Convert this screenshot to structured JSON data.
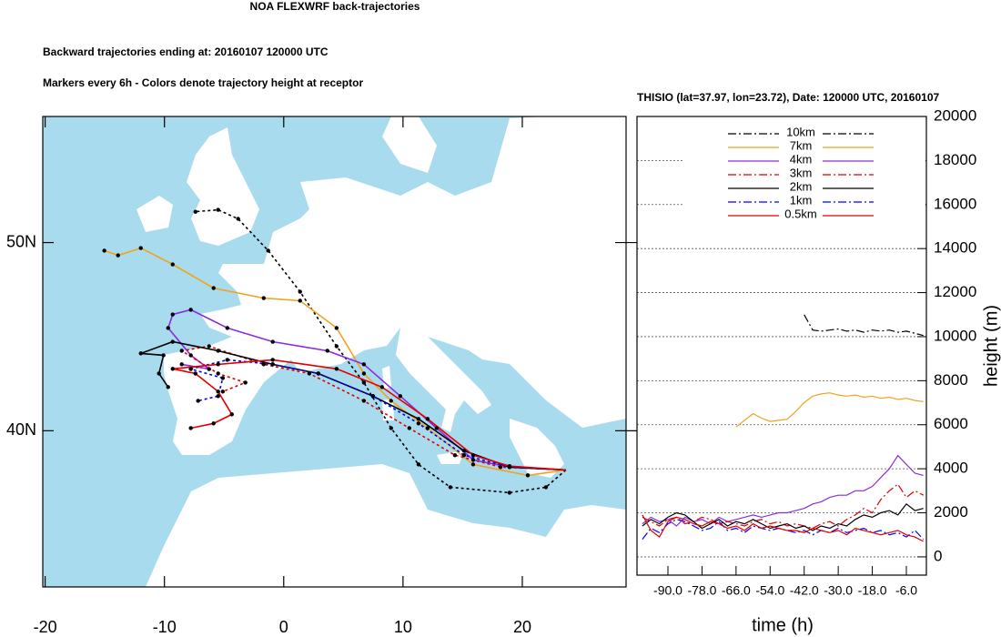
{
  "title": "NOA FLEXWRF back-trajectories",
  "subtitles": [
    "Backward trajectories ending at: 20160107  120000 UTC",
    "Markers every 6h - Colors denote trajectory height at receptor"
  ],
  "chart_data": [
    {
      "type": "trajectory",
      "xlim": [
        -20.2,
        28.7
      ],
      "ylim": [
        31.7,
        56.7
      ],
      "xticks": [
        -20,
        -10,
        0,
        10,
        20
      ],
      "yticks": [
        {
          "value": 40,
          "label": "40N"
        },
        {
          "value": 50,
          "label": "50N"
        }
      ],
      "grid": false,
      "series": [
        {
          "color": "#000000",
          "dash": "dot",
          "x": [
            23.66,
            21.98,
            18.93,
            13.97,
            11.3,
            9.0,
            6.72,
            4.43,
            1.37,
            -1.3,
            -3.82,
            -5.5,
            -7.4
          ],
          "values": [
            37.92,
            37.0,
            36.71,
            37.0,
            38.21,
            40.14,
            42.56,
            44.49,
            47.39,
            49.57,
            51.26,
            51.74,
            51.64
          ]
        },
        {
          "color": "#f2a21d",
          "dash": "solid",
          "x": [
            23.66,
            20.46,
            15.88,
            12.06,
            9.0,
            6.72,
            4.43,
            1.37,
            -1.68,
            -5.88,
            -9.31,
            -11.98,
            -13.89,
            -15.04
          ],
          "values": [
            37.92,
            37.63,
            38.21,
            40.14,
            41.59,
            43.04,
            45.46,
            46.91,
            47.05,
            47.58,
            48.84,
            49.71,
            49.32,
            49.57
          ]
        },
        {
          "color": "#8a2be2",
          "dash": "solid",
          "x": [
            23.66,
            18.93,
            15.88,
            12.82,
            9.77,
            6.72,
            3.66,
            -0.92,
            -4.73,
            -7.79,
            -9.31,
            -9.69,
            -7.79,
            -6.26,
            -8.55
          ],
          "values": [
            37.92,
            38.07,
            38.45,
            40.14,
            41.84,
            43.53,
            44.25,
            44.73,
            45.46,
            46.43,
            46.18,
            45.46,
            44.01,
            43.28,
            43.53
          ]
        },
        {
          "color": "#e00000",
          "dash": "dot",
          "x": [
            23.66,
            18.17,
            14.35,
            10.53,
            6.72,
            2.14,
            -1.68,
            -6.26,
            -8.55,
            -5.5,
            -3.21,
            -5.11
          ],
          "values": [
            37.92,
            38.07,
            38.7,
            40.14,
            41.59,
            43.04,
            43.53,
            44.49,
            44.25,
            43.04,
            42.56,
            42.08
          ]
        },
        {
          "color": "#000000",
          "dash": "solid",
          "x": [
            23.66,
            18.93,
            15.11,
            11.3,
            7.48,
            2.9,
            -0.92,
            -5.5,
            -9.31,
            -11.98,
            -10.08,
            -10.46,
            -9.69
          ],
          "values": [
            37.92,
            38.07,
            38.94,
            40.63,
            41.84,
            43.04,
            43.53,
            44.25,
            44.73,
            44.11,
            44.01,
            43.04,
            42.32
          ]
        },
        {
          "color": "#0000ff",
          "dash": "dot",
          "x": [
            23.66,
            18.93,
            15.11,
            11.3,
            7.48,
            2.9,
            -0.92,
            -4.73,
            -7.79,
            -5.11,
            -5.5,
            -7.18
          ],
          "values": [
            37.92,
            38.07,
            38.7,
            40.39,
            41.84,
            43.04,
            43.53,
            43.77,
            43.28,
            42.8,
            41.84,
            41.59
          ]
        },
        {
          "color": "#e00000",
          "dash": "solid",
          "x": [
            23.66,
            18.93,
            15.88,
            12.06,
            8.24,
            4.43,
            -0.92,
            -5.5,
            -9.31,
            -7.4,
            -5.5,
            -4.35,
            -5.88,
            -7.79
          ],
          "values": [
            37.92,
            38.12,
            38.7,
            40.63,
            42.32,
            43.29,
            43.77,
            43.53,
            43.29,
            43.04,
            42.08,
            40.87,
            40.39,
            40.14
          ]
        }
      ]
    },
    {
      "type": "line",
      "title": "THISIO (lat=37.97,  lon=23.72), Date: 120000 UTC, 20160107",
      "x_label": "time (h)",
      "y_label": "height (m)",
      "xlim": [
        -100.9,
        1.05
      ],
      "ylim": [
        -830,
        20000
      ],
      "xticks": [
        {
          "value": -90,
          "label": "-90.0"
        },
        {
          "value": -78,
          "label": "-78.0"
        },
        {
          "value": -66,
          "label": "-66.0"
        },
        {
          "value": -54,
          "label": "-54.0"
        },
        {
          "value": -42,
          "label": "-42.0"
        },
        {
          "value": -30,
          "label": "-30.0"
        },
        {
          "value": -18,
          "label": "-18.0"
        },
        {
          "value": -6,
          "label": "-6.0"
        }
      ],
      "yticks": [
        0,
        2000,
        4000,
        6000,
        8000,
        10000,
        12000,
        14000,
        16000,
        18000,
        20000
      ],
      "grid": true,
      "legend": "upper center",
      "x": [
        -99,
        -96,
        -93,
        -90,
        -87,
        -84,
        -81,
        -78,
        -75,
        -72,
        -69,
        -66,
        -63,
        -60,
        -57,
        -54,
        -51,
        -48,
        -45,
        -42,
        -39,
        -36,
        -33,
        -30,
        -27,
        -24,
        -21,
        -18,
        -15,
        -12,
        -9,
        -6,
        -3,
        0
      ],
      "series": [
        {
          "name": "10km",
          "color": "#000000",
          "dash": "dashdot",
          "values": [
            null,
            null,
            null,
            null,
            null,
            null,
            null,
            null,
            null,
            null,
            null,
            null,
            null,
            null,
            null,
            null,
            null,
            null,
            null,
            11000,
            10300,
            10250,
            10300,
            10350,
            10250,
            10300,
            10200,
            10300,
            10250,
            10300,
            10200,
            10250,
            10150,
            10050
          ]
        },
        {
          "name": "7km",
          "color": "#f2a21d",
          "dash": "solid",
          "values": [
            null,
            null,
            null,
            null,
            null,
            null,
            null,
            null,
            null,
            null,
            null,
            5900,
            6200,
            6500,
            6300,
            6150,
            6200,
            6250,
            6600,
            7000,
            7300,
            7400,
            7450,
            7350,
            7300,
            7350,
            7250,
            7300,
            7200,
            7250,
            7150,
            7200,
            7100,
            7050
          ]
        },
        {
          "name": "4km",
          "color": "#8a2be2",
          "dash": "solid",
          "values": [
            1500,
            1800,
            1600,
            1700,
            1400,
            1800,
            1600,
            1700,
            1500,
            1800,
            1600,
            1700,
            1800,
            1900,
            1800,
            1900,
            2000,
            2000,
            2100,
            2200,
            2400,
            2500,
            2700,
            2800,
            2800,
            3000,
            3000,
            3200,
            3600,
            4000,
            4600,
            4200,
            3800,
            3700
          ]
        },
        {
          "name": "3km",
          "color": "#e00000",
          "dash": "dashdot",
          "values": [
            1800,
            1600,
            1400,
            1700,
            1800,
            1500,
            1600,
            1800,
            1700,
            1500,
            1600,
            1500,
            1400,
            1600,
            1700,
            1500,
            1600,
            1400,
            1500,
            1400,
            1300,
            1500,
            1600,
            1400,
            1700,
            1900,
            2200,
            2000,
            2600,
            3000,
            3300,
            2700,
            3000,
            2800
          ]
        },
        {
          "name": "2km",
          "color": "#000000",
          "dash": "solid",
          "values": [
            1400,
            1700,
            1500,
            1800,
            2000,
            1900,
            1600,
            1300,
            1500,
            1700,
            1400,
            1600,
            1500,
            1700,
            1500,
            1300,
            1400,
            1500,
            1300,
            1400,
            1200,
            1400,
            1300,
            1500,
            1400,
            1700,
            1900,
            1800,
            2000,
            2100,
            1900,
            2400,
            2100,
            2200
          ]
        },
        {
          "name": "1km",
          "color": "#0000ff",
          "dash": "dashdot",
          "values": [
            800,
            1300,
            1100,
            1500,
            1700,
            1600,
            1400,
            1200,
            1300,
            1600,
            1200,
            1300,
            1100,
            1400,
            1300,
            1200,
            1300,
            1200,
            1100,
            1200,
            1000,
            1200,
            1100,
            1300,
            1100,
            1200,
            1300,
            1100,
            1200,
            1000,
            1100,
            900,
            1200,
            800
          ]
        },
        {
          "name": "0.5km",
          "color": "#e00000",
          "dash": "solid",
          "values": [
            1900,
            1200,
            900,
            1600,
            1800,
            1700,
            1500,
            1400,
            1600,
            1500,
            1300,
            1400,
            1200,
            1500,
            1300,
            1400,
            1300,
            1200,
            1200,
            1100,
            1300,
            1200,
            1100,
            1200,
            1000,
            1300,
            1200,
            1100,
            1000,
            1100,
            1200,
            1000,
            900,
            700
          ]
        }
      ]
    }
  ]
}
